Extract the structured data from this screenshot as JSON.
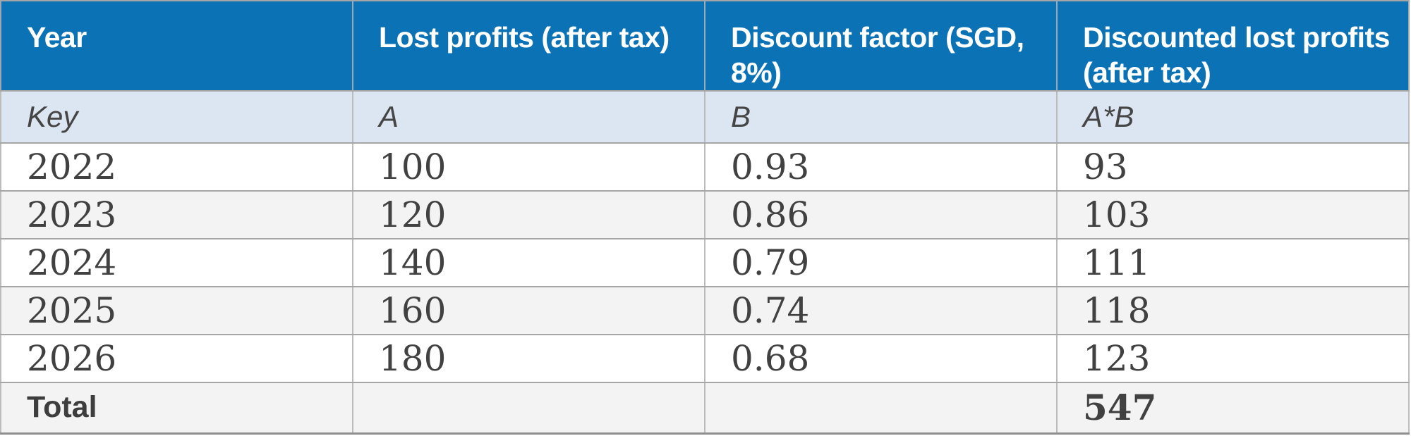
{
  "colors": {
    "header_bg": "#0b72b5",
    "header_text": "#ffffff",
    "key_row_bg": "#dce6f2",
    "stripe_bg": "#f3f3f3",
    "row_bg": "#ffffff",
    "body_text": "#414141",
    "grid_border": "#a6a6a6"
  },
  "table": {
    "headers": [
      "Year",
      "Lost profits (after tax)",
      "Discount factor (SGD, 8%)",
      "Discounted lost profits (after tax)"
    ],
    "key_row": [
      "Key",
      "A",
      "B",
      "A*B"
    ],
    "rows": [
      [
        "2022",
        "100",
        "0.93",
        "93"
      ],
      [
        "2023",
        "120",
        "0.86",
        "103"
      ],
      [
        "2024",
        "140",
        "0.79",
        "111"
      ],
      [
        "2025",
        "160",
        "0.74",
        "118"
      ],
      [
        "2026",
        "180",
        "0.68",
        "123"
      ]
    ],
    "total_row": [
      "Total",
      "",
      "",
      "547"
    ]
  },
  "chart_data": {
    "type": "table",
    "columns": [
      "Year",
      "Lost profits (after tax)",
      "Discount factor (SGD, 8%)",
      "Discounted lost profits (after tax)"
    ],
    "key_row": [
      "Key",
      "A",
      "B",
      "A*B"
    ],
    "rows": [
      [
        2022,
        100,
        0.93,
        93
      ],
      [
        2023,
        120,
        0.86,
        103
      ],
      [
        2024,
        140,
        0.79,
        111
      ],
      [
        2025,
        160,
        0.74,
        118
      ],
      [
        2026,
        180,
        0.68,
        123
      ]
    ],
    "total": {
      "label": "Total",
      "discounted_lost_profits_total": 547
    },
    "discount_rate": "8%",
    "currency": "SGD"
  }
}
